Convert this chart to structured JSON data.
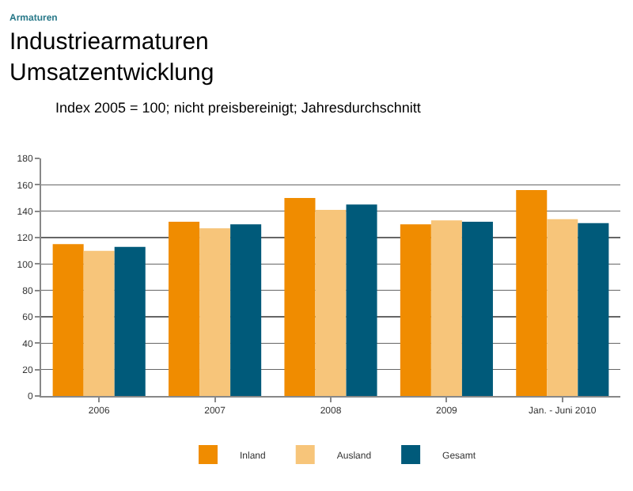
{
  "chart_data": {
    "type": "bar",
    "title": "Industriearmaturen\nUmsatzentwicklung",
    "subtitle": "Index 2005 = 100; nicht preisbereinigt; Jahresdurchschnitt",
    "annotations": [
      "Armaturen"
    ],
    "categories": [
      "2006",
      "2007",
      "2008",
      "2009",
      "Jan. - Juni 2010"
    ],
    "series": [
      {
        "name": "Inland",
        "color": "#f08c00",
        "values": [
          115,
          132,
          150,
          130,
          156
        ]
      },
      {
        "name": "Ausland",
        "color": "#f7c57a",
        "values": [
          110,
          127,
          141,
          133,
          134
        ]
      },
      {
        "name": "Gesamt",
        "color": "#005a7a",
        "values": [
          113,
          130,
          145,
          132,
          131
        ]
      }
    ],
    "ylim": [
      0,
      180
    ],
    "yticks": [
      0,
      20,
      40,
      60,
      80,
      100,
      120,
      140,
      160,
      180
    ],
    "grid": "y",
    "legend": "bottom"
  }
}
